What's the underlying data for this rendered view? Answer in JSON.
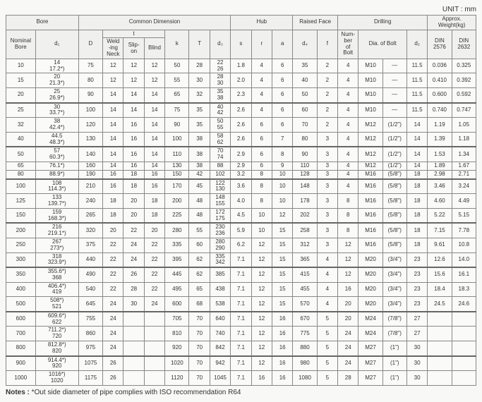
{
  "unit_label": "UNIT : mm",
  "headers": {
    "bore": "Bore",
    "common": "Common Dimension",
    "hub": "Hub",
    "raised": "Raised Face",
    "drilling": "Drilling",
    "weight": "Approx. Weight(kg)",
    "nominal": "Nominal\nBore",
    "d1": "d₁",
    "D": "D",
    "t": "t",
    "weld": "Weld\n-ing\nNeck",
    "slip": "Slip-\non",
    "blind": "Blind",
    "k": "k",
    "T": "T",
    "d3": "d₃",
    "s": "s",
    "r": "r",
    "a": "a",
    "d4": "d₄",
    "f": "f",
    "numbolt": "Num-\nber\nof\nBolt",
    "diabolt": "Dia. of Bolt",
    "d2": "d₂",
    "din2576": "DIN\n2576",
    "din2632": "DIN\n2632"
  },
  "rows": [
    {
      "nb": "10",
      "d1": "14\n17.2*)",
      "D": "75",
      "wn": "12",
      "so": "12",
      "bl": "12",
      "k": "50",
      "T": "28",
      "d3": "22\n26",
      "s": "1.8",
      "r": "4",
      "a": "6",
      "d4": "35",
      "f": "2",
      "nob": "4",
      "dia1": "M10",
      "dia2": "—",
      "d2": "11.5",
      "w1": "0.036",
      "w2": "0.325"
    },
    {
      "nb": "15",
      "d1": "20\n21.3*)",
      "D": "80",
      "wn": "12",
      "so": "12",
      "bl": "12",
      "k": "55",
      "T": "30",
      "d3": "28\n30",
      "s": "2.0",
      "r": "4",
      "a": "6",
      "d4": "40",
      "f": "2",
      "nob": "4",
      "dia1": "M10",
      "dia2": "—",
      "d2": "11.5",
      "w1": "0.410",
      "w2": "0.392"
    },
    {
      "nb": "20",
      "d1": "25\n26.9*)",
      "D": "90",
      "wn": "14",
      "so": "14",
      "bl": "14",
      "k": "65",
      "T": "32",
      "d3": "35\n38",
      "s": "2.3",
      "r": "4",
      "a": "6",
      "d4": "50",
      "f": "2",
      "nob": "4",
      "dia1": "M10",
      "dia2": "—",
      "d2": "11.5",
      "w1": "0.600",
      "w2": "0.592"
    },
    {
      "nb": "25",
      "d1": "30\n33.7*)",
      "D": "100",
      "wn": "14",
      "so": "14",
      "bl": "14",
      "k": "75",
      "T": "35",
      "d3": "40\n42",
      "s": "2.6",
      "r": "4",
      "a": "6",
      "d4": "60",
      "f": "2",
      "nob": "4",
      "dia1": "M10",
      "dia2": "—",
      "d2": "11.5",
      "w1": "0.740",
      "w2": "0.747",
      "sep": true
    },
    {
      "nb": "32",
      "d1": "38\n42.4*)",
      "D": "120",
      "wn": "14",
      "so": "16",
      "bl": "14",
      "k": "90",
      "T": "35",
      "d3": "50\n55",
      "s": "2.6",
      "r": "6",
      "a": "6",
      "d4": "70",
      "f": "2",
      "nob": "4",
      "dia1": "M12",
      "dia2": "(1/2\")",
      "d2": "14",
      "w1": "1.19",
      "w2": "1.05"
    },
    {
      "nb": "40",
      "d1": "44.5\n48.3*)",
      "D": "130",
      "wn": "14",
      "so": "16",
      "bl": "14",
      "k": "100",
      "T": "38",
      "d3": "58\n62",
      "s": "2.6",
      "r": "6",
      "a": "7",
      "d4": "80",
      "f": "3",
      "nob": "4",
      "dia1": "M12",
      "dia2": "(1/2\")",
      "d2": "14",
      "w1": "1.39",
      "w2": "1.18"
    },
    {
      "nb": "50",
      "d1": "57\n60.3*)",
      "D": "140",
      "wn": "14",
      "so": "16",
      "bl": "14",
      "k": "110",
      "T": "38",
      "d3": "70\n74",
      "s": "2.9",
      "r": "6",
      "a": "8",
      "d4": "90",
      "f": "3",
      "nob": "4",
      "dia1": "M12",
      "dia2": "(1/2\")",
      "d2": "14",
      "w1": "1.53",
      "w2": "1.34",
      "sep": true
    },
    {
      "nb": "65",
      "d1": "76.1*)",
      "D": "160",
      "wn": "14",
      "so": "16",
      "bl": "14",
      "k": "130",
      "T": "38",
      "d3": "88",
      "s": "2.9",
      "r": "6",
      "a": "9",
      "d4": "110",
      "f": "3",
      "nob": "4",
      "dia1": "M12",
      "dia2": "(1/2\")",
      "d2": "14",
      "w1": "1.89",
      "w2": "1.67"
    },
    {
      "nb": "80",
      "d1": "88.9*)",
      "D": "190",
      "wn": "16",
      "so": "18",
      "bl": "16",
      "k": "150",
      "T": "42",
      "d3": "102",
      "s": "3.2",
      "r": "8",
      "a": "10",
      "d4": "128",
      "f": "3",
      "nob": "4",
      "dia1": "M16",
      "dia2": "(5/8\")",
      "d2": "18",
      "w1": "2.98",
      "w2": "2.71"
    },
    {
      "nb": "100",
      "d1": "108\n114.3*)",
      "D": "210",
      "wn": "16",
      "so": "18",
      "bl": "16",
      "k": "170",
      "T": "45",
      "d3": "122\n130",
      "s": "3.6",
      "r": "8",
      "a": "10",
      "d4": "148",
      "f": "3",
      "nob": "4",
      "dia1": "M16",
      "dia2": "(5/8\")",
      "d2": "18",
      "w1": "3.46",
      "w2": "3.24",
      "sep": true
    },
    {
      "nb": "125",
      "d1": "133\n139.7*)",
      "D": "240",
      "wn": "18",
      "so": "20",
      "bl": "18",
      "k": "200",
      "T": "48",
      "d3": "148\n155",
      "s": "4.0",
      "r": "8",
      "a": "10",
      "d4": "178",
      "f": "3",
      "nob": "8",
      "dia1": "M16",
      "dia2": "(5/8\")",
      "d2": "18",
      "w1": "4.60",
      "w2": "4.49"
    },
    {
      "nb": "150",
      "d1": "159\n168.3*)",
      "D": "265",
      "wn": "18",
      "so": "20",
      "bl": "18",
      "k": "225",
      "T": "48",
      "d3": "172\n175",
      "s": "4.5",
      "r": "10",
      "a": "12",
      "d4": "202",
      "f": "3",
      "nob": "8",
      "dia1": "M16",
      "dia2": "(5/8\")",
      "d2": "18",
      "w1": "5.22",
      "w2": "5.15"
    },
    {
      "nb": "200",
      "d1": "216\n219.1*)",
      "D": "320",
      "wn": "20",
      "so": "22",
      "bl": "20",
      "k": "280",
      "T": "55",
      "d3": "230\n236",
      "s": "5.9",
      "r": "10",
      "a": "15",
      "d4": "258",
      "f": "3",
      "nob": "8",
      "dia1": "M16",
      "dia2": "(5/8\")",
      "d2": "18",
      "w1": "7.15",
      "w2": "7.78",
      "sep": true
    },
    {
      "nb": "250",
      "d1": "267\n273*)",
      "D": "375",
      "wn": "22",
      "so": "24",
      "bl": "22",
      "k": "335",
      "T": "60",
      "d3": "280\n290",
      "s": "6.2",
      "r": "12",
      "a": "15",
      "d4": "312",
      "f": "3",
      "nob": "12",
      "dia1": "M16",
      "dia2": "(5/8\")",
      "d2": "18",
      "w1": "9.61",
      "w2": "10.8"
    },
    {
      "nb": "300",
      "d1": "318\n323.9*)",
      "D": "440",
      "wn": "22",
      "so": "24",
      "bl": "22",
      "k": "395",
      "T": "62",
      "d3": "335\n342",
      "s": "7.1",
      "r": "12",
      "a": "15",
      "d4": "365",
      "f": "4",
      "nob": "12",
      "dia1": "M20",
      "dia2": "(3/4\")",
      "d2": "23",
      "w1": "12.6",
      "w2": "14.0"
    },
    {
      "nb": "350",
      "d1": "355.6*)\n368",
      "D": "490",
      "wn": "22",
      "so": "26",
      "bl": "22",
      "k": "445",
      "T": "62",
      "d3": "385",
      "s": "7.1",
      "r": "12",
      "a": "15",
      "d4": "415",
      "f": "4",
      "nob": "12",
      "dia1": "M20",
      "dia2": "(3/4\")",
      "d2": "23",
      "w1": "15.6",
      "w2": "16.1",
      "sep": true
    },
    {
      "nb": "400",
      "d1": "406.4*)\n419",
      "D": "540",
      "wn": "22",
      "so": "28",
      "bl": "22",
      "k": "495",
      "T": "65",
      "d3": "438",
      "s": "7.1",
      "r": "12",
      "a": "15",
      "d4": "455",
      "f": "4",
      "nob": "16",
      "dia1": "M20",
      "dia2": "(3/4\")",
      "d2": "23",
      "w1": "18.4",
      "w2": "18.3"
    },
    {
      "nb": "500",
      "d1": "508*)\n521",
      "D": "645",
      "wn": "24",
      "so": "30",
      "bl": "24",
      "k": "600",
      "T": "68",
      "d3": "538",
      "s": "7.1",
      "r": "12",
      "a": "15",
      "d4": "570",
      "f": "4",
      "nob": "20",
      "dia1": "M20",
      "dia2": "(3/4\")",
      "d2": "23",
      "w1": "24.5",
      "w2": "24.6"
    },
    {
      "nb": "600",
      "d1": "609.6*)\n622",
      "D": "755",
      "wn": "24",
      "so": "",
      "bl": "",
      "k": "705",
      "T": "70",
      "d3": "640",
      "s": "7.1",
      "r": "12",
      "a": "16",
      "d4": "670",
      "f": "5",
      "nob": "20",
      "dia1": "M24",
      "dia2": "(7/8\")",
      "d2": "27",
      "w1": "",
      "w2": "",
      "sep": true
    },
    {
      "nb": "700",
      "d1": "711.2*)\n720",
      "D": "860",
      "wn": "24",
      "so": "",
      "bl": "",
      "k": "810",
      "T": "70",
      "d3": "740",
      "s": "7.1",
      "r": "12",
      "a": "16",
      "d4": "775",
      "f": "5",
      "nob": "24",
      "dia1": "M24",
      "dia2": "(7/8\")",
      "d2": "27",
      "w1": "",
      "w2": ""
    },
    {
      "nb": "800",
      "d1": "812.8*)\n820",
      "D": "975",
      "wn": "24",
      "so": "",
      "bl": "",
      "k": "920",
      "T": "70",
      "d3": "842",
      "s": "7.1",
      "r": "12",
      "a": "16",
      "d4": "880",
      "f": "5",
      "nob": "24",
      "dia1": "M27",
      "dia2": "(1\")",
      "d2": "30",
      "w1": "",
      "w2": ""
    },
    {
      "nb": "900",
      "d1": "914.4*)\n920",
      "D": "1075",
      "wn": "26",
      "so": "",
      "bl": "",
      "k": "1020",
      "T": "70",
      "d3": "942",
      "s": "7.1",
      "r": "12",
      "a": "16",
      "d4": "980",
      "f": "5",
      "nob": "24",
      "dia1": "M27",
      "dia2": "(1\")",
      "d2": "30",
      "w1": "",
      "w2": "",
      "sep": true
    },
    {
      "nb": "1000",
      "d1": "1016*)\n1020",
      "D": "1175",
      "wn": "26",
      "so": "",
      "bl": "",
      "k": "1120",
      "T": "70",
      "d3": "1045",
      "s": "7.1",
      "r": "16",
      "a": "16",
      "d4": "1080",
      "f": "5",
      "nob": "28",
      "dia1": "M27",
      "dia2": "(1\")",
      "d2": "30",
      "w1": "",
      "w2": ""
    }
  ],
  "notes_label": "Notes : ",
  "notes_text": "*Out side diameter of pipe complies with ISO recommendation R64"
}
